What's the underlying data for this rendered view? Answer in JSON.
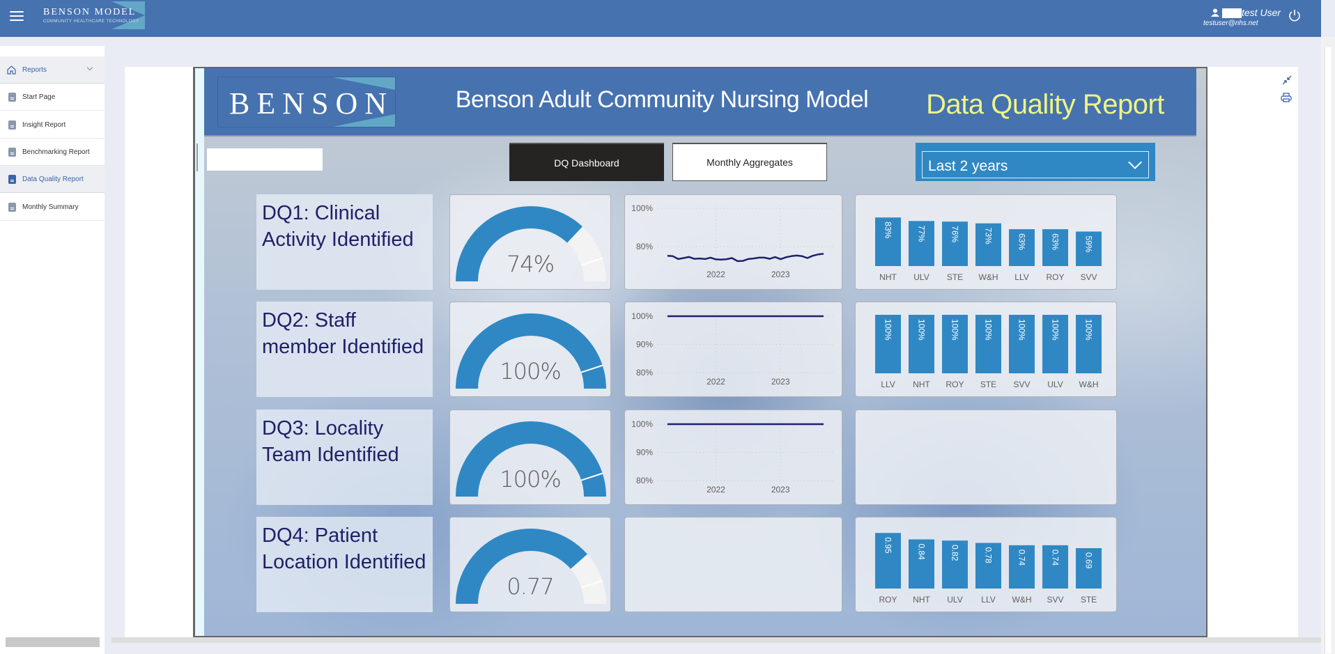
{
  "app": {
    "brand_name": "BENSON MODEL",
    "brand_tagline": "COMMUNITY HEALTHCARE TECHNOLOGY",
    "user_name": "test User",
    "user_email": "testuser@nhs.net"
  },
  "sidebar": {
    "section": "Reports",
    "items": [
      {
        "label": "Start Page",
        "active": false
      },
      {
        "label": "Insight Report",
        "active": false
      },
      {
        "label": "Benchmarking Report",
        "active": false
      },
      {
        "label": "Data Quality Report",
        "active": true
      },
      {
        "label": "Monthly Summary",
        "active": false
      }
    ]
  },
  "report": {
    "logo_text": "BENSON",
    "title": "Benson Adult Community Nursing Model",
    "subtitle": "Data Quality Report",
    "nav_buttons": [
      "DQ Dashboard",
      "Monthly Aggregates"
    ],
    "active_button": "DQ Dashboard",
    "period_filter": "Last 2 years",
    "colors": {
      "header": "#4672b0",
      "bar": "#2f88c4",
      "line": "#1f1f6e",
      "subtitle": "#eef585",
      "label_text": "#1f2068"
    }
  },
  "rows": [
    {
      "label": "DQ1: Clinical Activity Identified",
      "gauge": {
        "value": 0.74,
        "display": "74%",
        "max": 1,
        "target": 0.9
      },
      "trend": {
        "y_ticks": [
          "100%",
          "80%"
        ],
        "y_tick_values": [
          100,
          80
        ],
        "ylim": [
          70,
          100
        ],
        "x_ticks": [
          "2022",
          "2023"
        ],
        "x": [
          "2021-04",
          "2021-05",
          "2021-06",
          "2021-07",
          "2021-08",
          "2021-09",
          "2021-10",
          "2021-11",
          "2021-12",
          "2022-01",
          "2022-02",
          "2022-03",
          "2022-04",
          "2022-05",
          "2022-06",
          "2022-07",
          "2022-08",
          "2022-09",
          "2022-10",
          "2022-11",
          "2022-12",
          "2023-01",
          "2023-02",
          "2023-03",
          "2023-04",
          "2023-05",
          "2023-06",
          "2023-07",
          "2023-08",
          "2023-09"
        ],
        "y": [
          75.2,
          75.0,
          73.5,
          74.0,
          74.6,
          73.6,
          73.8,
          73.5,
          74.2,
          73.3,
          73.2,
          73.4,
          74.0,
          72.4,
          72.5,
          73.5,
          73.8,
          74.2,
          74.2,
          73.6,
          74.5,
          73.4,
          74.4,
          75.0,
          75.3,
          75.0,
          74.0,
          75.2,
          75.9,
          76.2
        ]
      },
      "bars": {
        "categories": [
          "NHT",
          "ULV",
          "STE",
          "W&H",
          "LLV",
          "ROY",
          "SVV"
        ],
        "values": [
          83,
          77,
          76,
          73,
          63,
          63,
          59
        ],
        "labels": [
          "83%",
          "77%",
          "76%",
          "73%",
          "63%",
          "63%",
          "59%"
        ],
        "max": 100
      }
    },
    {
      "label": "DQ2: Staff member Identified",
      "gauge": {
        "value": 1.0,
        "display": "100%",
        "max": 1,
        "target": 0.9
      },
      "trend": {
        "y_ticks": [
          "100%",
          "90%",
          "80%"
        ],
        "y_tick_values": [
          100,
          90,
          80
        ],
        "ylim": [
          78,
          101
        ],
        "x_ticks": [
          "2022",
          "2023"
        ],
        "x": [
          "2021-04",
          "2023-09"
        ],
        "y": [
          100,
          100
        ]
      },
      "bars": {
        "categories": [
          "LLV",
          "NHT",
          "ROY",
          "STE",
          "SVV",
          "ULV",
          "W&H"
        ],
        "values": [
          100,
          100,
          100,
          100,
          100,
          100,
          100
        ],
        "labels": [
          "100%",
          "100%",
          "100%",
          "100%",
          "100%",
          "100%",
          "100%"
        ],
        "max": 100
      }
    },
    {
      "label": "DQ3: Locality Team Identified",
      "gauge": {
        "value": 1.0,
        "display": "100%",
        "max": 1,
        "target": 0.9
      },
      "trend": {
        "y_ticks": [
          "100%",
          "90%",
          "80%"
        ],
        "y_tick_values": [
          100,
          90,
          80
        ],
        "ylim": [
          78,
          101
        ],
        "x_ticks": [
          "2022",
          "2023"
        ],
        "x": [
          "2021-04",
          "2023-09"
        ],
        "y": [
          100,
          100
        ]
      },
      "bars": null
    },
    {
      "label": "DQ4: Patient Location Identified",
      "gauge": {
        "value": 0.77,
        "display": "0.77",
        "max": 1,
        "target": 0.9
      },
      "trend": null,
      "bars": {
        "categories": [
          "ROY",
          "NHT",
          "ULV",
          "LLV",
          "W&H",
          "SVV",
          "STE"
        ],
        "values": [
          0.95,
          0.84,
          0.82,
          0.78,
          0.74,
          0.74,
          0.69
        ],
        "labels": [
          "0.95",
          "0.84",
          "0.82",
          "0.78",
          "0.74",
          "0.74",
          "0.69"
        ],
        "max": 1
      }
    }
  ]
}
